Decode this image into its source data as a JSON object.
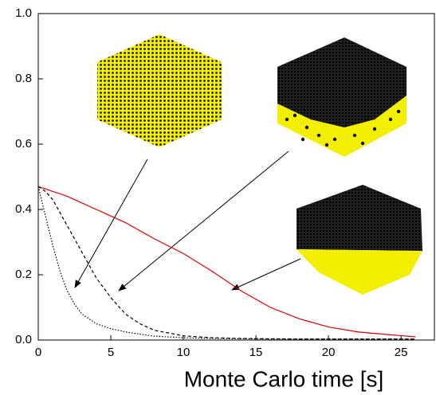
{
  "chart_data": {
    "type": "line",
    "x_label": "Monte Carlo time [s]",
    "x": [
      0,
      0.5,
      1,
      1.5,
      2,
      2.5,
      3,
      4,
      5,
      6,
      7,
      8,
      10,
      12,
      14,
      16,
      18,
      20,
      22,
      24,
      26
    ],
    "series": [
      {
        "color": "#e00000",
        "dash": "solid",
        "values": [
          0.47,
          0.463,
          0.455,
          0.448,
          0.44,
          0.43,
          0.42,
          0.4,
          0.38,
          0.36,
          0.335,
          0.31,
          0.265,
          0.21,
          0.15,
          0.1,
          0.065,
          0.04,
          0.025,
          0.017,
          0.01
        ]
      },
      {
        "color": "#000000",
        "dash": "dashed",
        "values": [
          0.47,
          0.455,
          0.43,
          0.39,
          0.35,
          0.31,
          0.27,
          0.19,
          0.13,
          0.08,
          0.05,
          0.03,
          0.013,
          0.007,
          0.005,
          0.004,
          0.003,
          0.003,
          0.003,
          0.003,
          0.003
        ]
      },
      {
        "color": "#000000",
        "dash": "dotted",
        "values": [
          0.47,
          0.38,
          0.29,
          0.21,
          0.15,
          0.11,
          0.08,
          0.05,
          0.035,
          0.025,
          0.018,
          0.012,
          0.007,
          0.005,
          0.004,
          0.003,
          0.003,
          0.003,
          0.003,
          0.003,
          0.003
        ]
      }
    ],
    "xlim": [
      0,
      27.3
    ],
    "ylim": [
      0,
      1.0
    ],
    "xticks": [
      0,
      5,
      10,
      15,
      20,
      25
    ],
    "yticks": [
      {
        "value": 0,
        "label": "0.0"
      },
      0.2,
      0.4,
      0.6,
      0.8,
      {
        "value": 1,
        "label": "1.0"
      }
    ]
  }
}
